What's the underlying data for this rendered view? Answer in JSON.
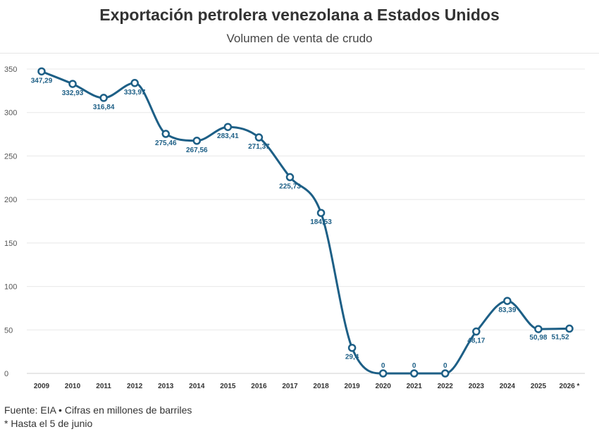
{
  "header": {
    "title": "Exportación petrolera venezolana a Estados Unidos",
    "subtitle": "Volumen de venta de crudo"
  },
  "footer": {
    "source": "Fuente: EIA • Cifras en millones de barriles",
    "note": "* Hasta el 5 de junio"
  },
  "colors": {
    "line": "#1d5f86",
    "grid": "#e8e8e8",
    "marker_fill": "#ffffff"
  },
  "chart_data": {
    "type": "line",
    "title": "Exportación petrolera venezolana a Estados Unidos",
    "subtitle": "Volumen de venta de crudo",
    "categories": [
      "2009",
      "2010",
      "2011",
      "2012",
      "2013",
      "2014",
      "2015",
      "2016",
      "2017",
      "2018",
      "2019",
      "2020",
      "2021",
      "2022",
      "2023",
      "2024",
      "2025",
      "2026 *"
    ],
    "values": [
      347.29,
      332.93,
      316.84,
      333.97,
      275.46,
      267.56,
      283.41,
      271.37,
      225.73,
      184.53,
      29.4,
      0,
      0,
      0,
      48.17,
      83.39,
      50.98,
      51.52
    ],
    "data_labels": [
      "347,29",
      "332,93",
      "316,84",
      "333,97",
      "275,46",
      "267,56",
      "283,41",
      "271,37",
      "225,73",
      "184,53",
      "29,4",
      "0",
      "0",
      "0",
      "48,17",
      "83,39",
      "50,98",
      "51,52"
    ],
    "yticks": [
      0,
      50,
      100,
      150,
      200,
      250,
      300,
      350
    ],
    "ylim": [
      0,
      350
    ],
    "grid": true,
    "legend": "none"
  }
}
